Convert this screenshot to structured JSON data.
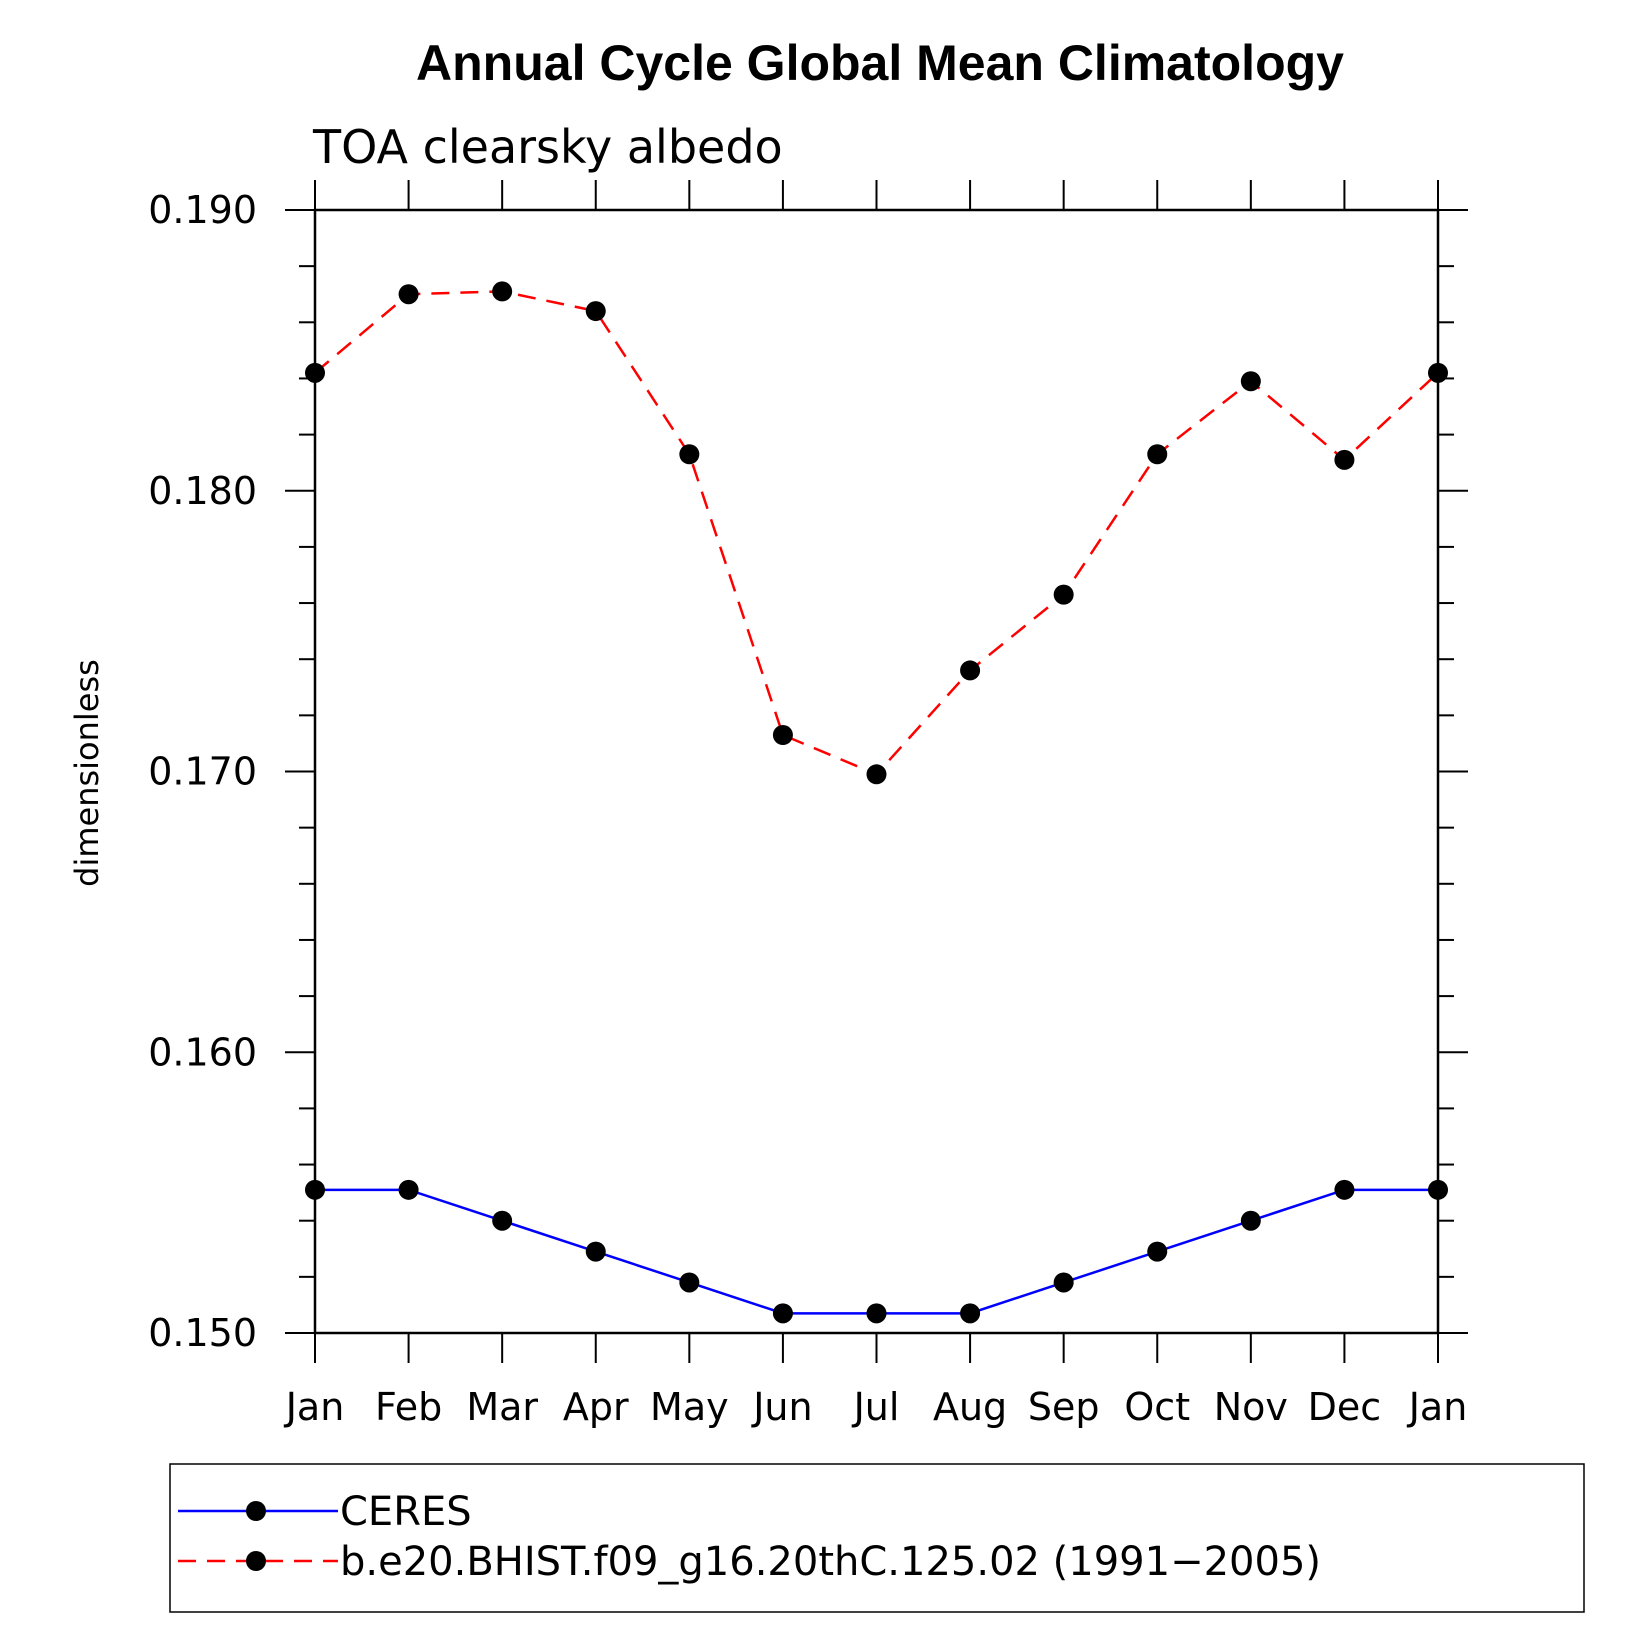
{
  "chart_data": {
    "type": "line",
    "title": "Annual Cycle Global Mean Climatology",
    "subtitle": "TOA clearsky albedo",
    "ylabel": "dimensionless",
    "xlabel": "",
    "categories": [
      "Jan",
      "Feb",
      "Mar",
      "Apr",
      "May",
      "Jun",
      "Jul",
      "Aug",
      "Sep",
      "Oct",
      "Nov",
      "Dec",
      "Jan"
    ],
    "yticks": [
      "0.150",
      "0.160",
      "0.170",
      "0.180",
      "0.190"
    ],
    "ylim": [
      0.15,
      0.19
    ],
    "grid": false,
    "legend_position": "bottom",
    "series": [
      {
        "name": "CERES",
        "color": "#0000ff",
        "line_style": "solid",
        "marker": "filled-circle",
        "values": [
          0.1551,
          0.1551,
          0.154,
          0.1529,
          0.1518,
          0.1507,
          0.1507,
          0.1507,
          0.1518,
          0.1529,
          0.154,
          0.1551,
          0.1551
        ]
      },
      {
        "name": "b.e20.BHIST.f09_g16.20thC.125.02 (1991−2005)",
        "color": "#ff0000",
        "line_style": "dashed",
        "marker": "filled-circle",
        "values": [
          0.1842,
          0.187,
          0.1871,
          0.1864,
          0.1813,
          0.1713,
          0.1699,
          0.1736,
          0.1763,
          0.1813,
          0.1839,
          0.1811,
          0.1842
        ]
      }
    ]
  }
}
